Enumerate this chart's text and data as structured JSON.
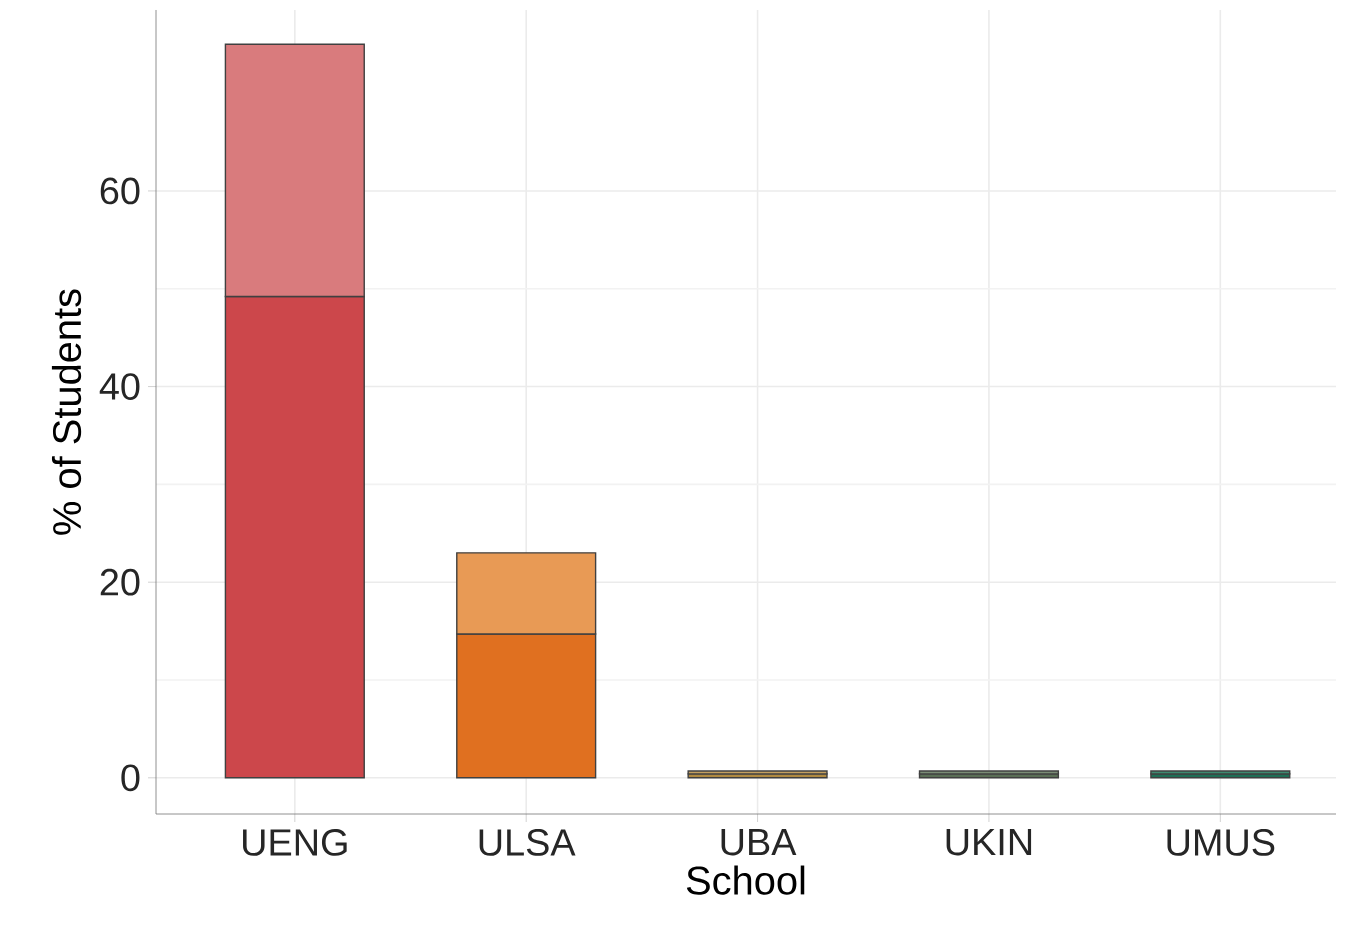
{
  "chart_data": {
    "type": "bar",
    "stacked": true,
    "xlabel": "School",
    "ylabel": "% of Students",
    "categories": [
      "UENG",
      "ULSA",
      "UBA",
      "UKIN",
      "UMUS"
    ],
    "series": [
      {
        "colors": [
          "#cc474b",
          "#e07020",
          "#b08a40",
          "#5a6e55",
          "#1e6e55"
        ],
        "values": [
          49.2,
          14.7,
          0.4,
          0.4,
          0.4
        ]
      },
      {
        "colors": [
          "#d97b7d",
          "#e89a55",
          "#c4a060",
          "#7a8c75",
          "#3e8a70"
        ],
        "values": [
          25.8,
          8.3,
          0.3,
          0.3,
          0.3
        ]
      }
    ],
    "ylim": [
      -3.7,
      78.5
    ],
    "yticks": [
      0,
      20,
      40,
      60
    ],
    "grid": true
  }
}
